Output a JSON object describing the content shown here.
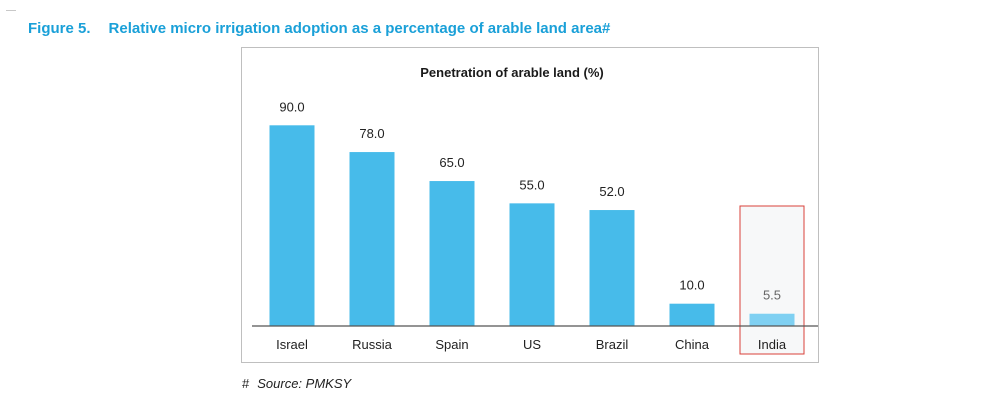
{
  "figure": {
    "number": "Figure 5.",
    "caption": "Relative micro irrigation adoption as a percentage of arable land area#"
  },
  "source": {
    "marker": "#",
    "text": "Source: PMKSY"
  },
  "colors": {
    "caption": "#1aa0d8",
    "bar": "#47bbea",
    "highlight_bar": "#7fd0f2",
    "highlight_box": "#d9403a",
    "highlight_fill": "#f7f8f9"
  },
  "chart_data": {
    "type": "bar",
    "title": "Penetration of arable land (%)",
    "categories": [
      "Israel",
      "Russia",
      "Spain",
      "US",
      "Brazil",
      "China",
      "India"
    ],
    "values": [
      90.0,
      78.0,
      65.0,
      55.0,
      52.0,
      10.0,
      5.5
    ],
    "value_labels": [
      "90.0",
      "78.0",
      "65.0",
      "55.0",
      "52.0",
      "10.0",
      "5.5"
    ],
    "highlight": "India",
    "ylim": [
      0,
      100
    ],
    "grid": false,
    "legend": "none",
    "xlabel": "",
    "ylabel": ""
  }
}
